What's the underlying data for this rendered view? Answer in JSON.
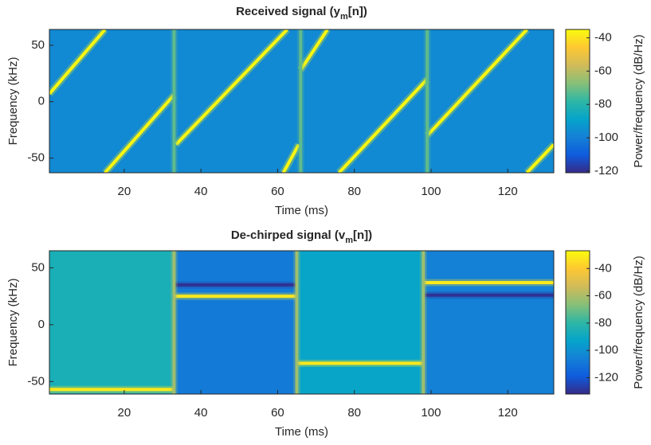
{
  "chart_data": [
    {
      "type": "spectrogram",
      "title": [
        "Received signal (y",
        "m",
        "[n])"
      ],
      "xlabel": "Time (ms)",
      "ylabel": "Frequency (kHz)",
      "colorbar_label": "Power/frequency (dB/Hz)",
      "xlim": [
        0.5,
        132
      ],
      "xticks": [
        20,
        40,
        60,
        80,
        100,
        120
      ],
      "ylim": [
        -63,
        64
      ],
      "yticks": [
        -50,
        0,
        50
      ],
      "clim": [
        -121,
        -35
      ],
      "cticks": [
        -120,
        -100,
        -80,
        -60,
        -40
      ],
      "colormap": [
        "#352a87",
        "#0f5cdd",
        "#1481d6",
        "#06a4ca",
        "#2eb7a4",
        "#87bf77",
        "#d1bb59",
        "#fec832",
        "#f9fb0e"
      ],
      "frames": [
        {
          "x": [
            0.5,
            33
          ],
          "value": -97
        },
        {
          "x": [
            33,
            66
          ],
          "value": -97
        },
        {
          "x": [
            66,
            99
          ],
          "value": -97
        },
        {
          "x": [
            99,
            132
          ],
          "value": -97
        }
      ],
      "lines": [
        {
          "x": [
            0.5,
            15
          ],
          "y": [
            7,
            64
          ],
          "value": -36
        },
        {
          "x": [
            15,
            33
          ],
          "y": [
            -63,
            6
          ],
          "value": -36
        },
        {
          "x": [
            33.5,
            62.5
          ],
          "y": [
            -38,
            64
          ],
          "value": -36
        },
        {
          "x": [
            61.5,
            65.5
          ],
          "y": [
            -63,
            -38
          ],
          "value": -36
        },
        {
          "x": [
            66,
            73
          ],
          "y": [
            28,
            64
          ],
          "value": -36
        },
        {
          "x": [
            76,
            99
          ],
          "y": [
            -63,
            20
          ],
          "value": -36
        },
        {
          "x": [
            99,
            125
          ],
          "y": [
            -30,
            64
          ],
          "value": -36
        },
        {
          "x": [
            125,
            132
          ],
          "y": [
            -63,
            -38
          ],
          "value": -36
        },
        {
          "x": [
            33,
            33
          ],
          "y": [
            -63,
            64
          ],
          "value": -72
        },
        {
          "x": [
            66,
            66
          ],
          "y": [
            -63,
            64
          ],
          "value": -72
        },
        {
          "x": [
            99,
            99
          ],
          "y": [
            -63,
            64
          ],
          "value": -72
        }
      ]
    },
    {
      "type": "spectrogram",
      "title": [
        "De-chirped signal (v",
        "m",
        "[n])"
      ],
      "xlabel": "Time (ms)",
      "ylabel": "Frequency (kHz)",
      "colorbar_label": "Power/frequency (dB/Hz)",
      "xlim": [
        0.5,
        132
      ],
      "xticks": [
        20,
        40,
        60,
        80,
        100,
        120
      ],
      "ylim": [
        -61,
        65
      ],
      "yticks": [
        -50,
        0,
        50
      ],
      "clim": [
        -132,
        -27
      ],
      "cticks": [
        -120,
        -100,
        -80,
        -60,
        -40
      ],
      "colormap": [
        "#352a87",
        "#0f5cdd",
        "#1481d6",
        "#06a4ca",
        "#2eb7a4",
        "#87bf77",
        "#d1bb59",
        "#fec832",
        "#f9fb0e"
      ],
      "frames": [
        {
          "x": [
            0.5,
            33
          ],
          "value": -86
        },
        {
          "x": [
            33,
            65
          ],
          "value": -108
        },
        {
          "x": [
            65,
            98
          ],
          "value": -92
        },
        {
          "x": [
            98,
            132
          ],
          "value": -106
        }
      ],
      "lines": [
        {
          "x": [
            0.5,
            33
          ],
          "y": [
            -57,
            -57
          ],
          "value": -32
        },
        {
          "x": [
            33,
            65
          ],
          "y": [
            25,
            25
          ],
          "value": -32
        },
        {
          "x": [
            33,
            65
          ],
          "y": [
            35,
            35
          ],
          "value": -130
        },
        {
          "x": [
            65,
            98
          ],
          "y": [
            -34,
            -34
          ],
          "value": -32
        },
        {
          "x": [
            98,
            132
          ],
          "y": [
            37,
            37
          ],
          "value": -32
        },
        {
          "x": [
            98,
            132
          ],
          "y": [
            26,
            26
          ],
          "value": -130
        },
        {
          "x": [
            33,
            33
          ],
          "y": [
            -61,
            65
          ],
          "value": -62
        },
        {
          "x": [
            65,
            65
          ],
          "y": [
            -61,
            65
          ],
          "value": -62
        },
        {
          "x": [
            98,
            98
          ],
          "y": [
            -61,
            65
          ],
          "value": -62
        }
      ]
    }
  ]
}
